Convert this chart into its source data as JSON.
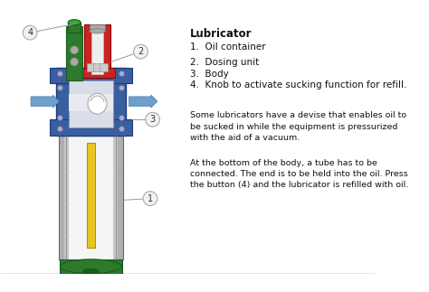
{
  "title": "Lubricator",
  "items": [
    "1.  Oil container",
    "2.  Dosing unit",
    "3.  Body",
    "4.  Knob to activate sucking function for refill."
  ],
  "para1": "Some lubricators have a devise that enables oil to\nbe sucked in while the equipment is pressurized\nwith the aid of a vacuum.",
  "para2": "At the bottom of the body, a tube has to be\nconnected. The end is to be held into the oil. Press\nthe button (4) and the lubricator is refilled with oil.",
  "bg_color": "#ffffff",
  "blue": "#3a5fa0",
  "red": "#cc2222",
  "green": "#2d7a2d",
  "yellow": "#e8c820",
  "light_gray": "#d8d8d8",
  "dark_gray": "#777777",
  "silver": "#b8b8b8",
  "white_inner": "#e8e8e8",
  "arrow_color": "#6fa0cc",
  "label_bg": "#f0f0f0",
  "label_stroke": "#999999",
  "text_color": "#111111"
}
